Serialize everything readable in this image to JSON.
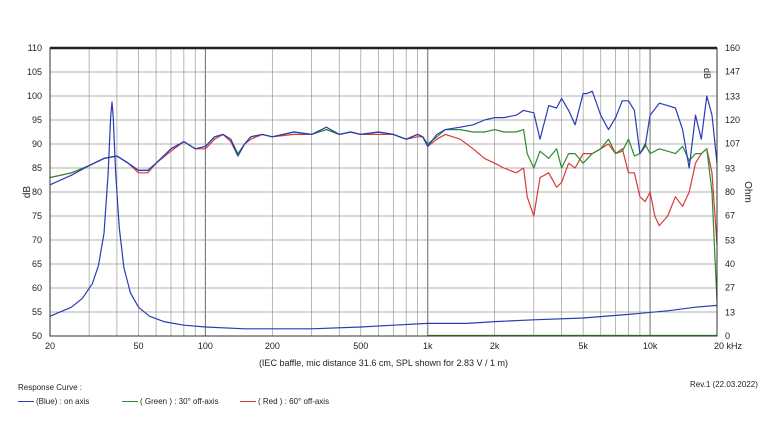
{
  "chart_data": {
    "type": "line",
    "xscale": "log",
    "xlim": [
      20,
      20000
    ],
    "ylim": [
      50,
      110
    ],
    "y2lim": [
      0,
      160
    ],
    "xlabel": "(IEC baffle, mic distance 31.6 cm, SPL shown for 2.83 V / 1 m)",
    "ylabel": "dB",
    "y2label": "Ohm",
    "x_ticks": [
      {
        "value": 20,
        "label": "20"
      },
      {
        "value": 50,
        "label": "50"
      },
      {
        "value": 100,
        "label": "100"
      },
      {
        "value": 200,
        "label": "200"
      },
      {
        "value": 500,
        "label": "500"
      },
      {
        "value": 1000,
        "label": "1k"
      },
      {
        "value": 2000,
        "label": "2k"
      },
      {
        "value": 5000,
        "label": "5k"
      },
      {
        "value": 10000,
        "label": "10k"
      },
      {
        "value": 20000,
        "label": "20 kHz"
      }
    ],
    "y_ticks": [
      110,
      105,
      100,
      95,
      90,
      85,
      80,
      75,
      70,
      65,
      60,
      55,
      50
    ],
    "y2_ticks": [
      160,
      147,
      133,
      120,
      107,
      93,
      80,
      67,
      53,
      40,
      27,
      13,
      0
    ],
    "y2_note": "dB",
    "series": [
      {
        "name": "on axis",
        "color": "#2b3bb8",
        "axis": "left",
        "x": [
          20,
          25,
          30,
          35,
          40,
          45,
          50,
          55,
          60,
          70,
          80,
          90,
          100,
          110,
          120,
          130,
          140,
          150,
          160,
          180,
          200,
          250,
          300,
          350,
          400,
          450,
          500,
          600,
          700,
          800,
          900,
          950,
          1000,
          1100,
          1200,
          1400,
          1600,
          1800,
          2000,
          2200,
          2500,
          2700,
          3000,
          3200,
          3500,
          3800,
          4000,
          4300,
          4600,
          5000,
          5200,
          5500,
          6000,
          6500,
          7000,
          7500,
          8000,
          8500,
          9000,
          9500,
          10000,
          11000,
          12000,
          13000,
          14000,
          15000,
          16000,
          17000,
          18000,
          19000,
          20000
        ],
        "y": [
          81.5,
          83.5,
          85.5,
          87,
          87.5,
          86,
          84.5,
          84.5,
          86,
          89,
          90.5,
          89,
          89.5,
          91.5,
          92,
          91,
          87.5,
          90,
          91.5,
          92,
          91.5,
          92.5,
          92,
          93.5,
          92,
          92.5,
          92,
          92.5,
          92,
          91,
          92,
          91.5,
          89.5,
          92,
          93,
          93.5,
          94,
          95,
          95.5,
          95.5,
          96,
          97,
          96.5,
          91,
          98,
          97.5,
          99.5,
          97,
          94,
          100.5,
          100.5,
          101,
          96,
          93,
          95.5,
          99,
          99,
          97,
          88,
          89.5,
          96,
          98.5,
          98,
          97.5,
          93,
          85,
          96,
          91,
          100,
          96,
          86
        ]
      },
      {
        "name": "30° off-axis",
        "color": "#2e8b2e",
        "axis": "left",
        "x": [
          20,
          25,
          30,
          35,
          40,
          45,
          50,
          55,
          60,
          70,
          80,
          90,
          100,
          110,
          120,
          130,
          140,
          150,
          160,
          180,
          200,
          250,
          300,
          350,
          400,
          450,
          500,
          600,
          700,
          800,
          900,
          950,
          1000,
          1100,
          1200,
          1400,
          1600,
          1800,
          2000,
          2200,
          2500,
          2700,
          2800,
          3000,
          3200,
          3500,
          3800,
          4000,
          4300,
          4600,
          5000,
          5500,
          6000,
          6500,
          7000,
          7500,
          8000,
          8500,
          9000,
          9500,
          10000,
          11000,
          12000,
          13000,
          14000,
          15000,
          16000,
          17000,
          18000,
          19000,
          20000
        ],
        "y": [
          83,
          84,
          85.5,
          87,
          87.5,
          86,
          84.5,
          84.5,
          86,
          89,
          90.5,
          89,
          89.5,
          91.5,
          92,
          91,
          88,
          90,
          91.5,
          92,
          91.5,
          92.5,
          92,
          93,
          92,
          92.5,
          92,
          92.5,
          92,
          91,
          92,
          91.5,
          90,
          91.5,
          93,
          93,
          92.5,
          92.5,
          93,
          92.5,
          92.5,
          93,
          88,
          85,
          88.5,
          87,
          89,
          85,
          88,
          88,
          86,
          88,
          89,
          91,
          88,
          88.5,
          91,
          87.5,
          88,
          90,
          88,
          89,
          88.5,
          88,
          89.5,
          86.5,
          88,
          88,
          89,
          80,
          57
        ]
      },
      {
        "name": "60° off-axis",
        "color": "#d93a3a",
        "axis": "left",
        "x": [
          20,
          25,
          30,
          35,
          40,
          45,
          50,
          55,
          60,
          70,
          80,
          90,
          100,
          110,
          120,
          130,
          140,
          150,
          160,
          180,
          200,
          250,
          300,
          350,
          400,
          450,
          500,
          600,
          700,
          800,
          900,
          950,
          1000,
          1100,
          1200,
          1400,
          1600,
          1800,
          2000,
          2200,
          2500,
          2700,
          2800,
          3000,
          3200,
          3500,
          3800,
          4000,
          4300,
          4600,
          5000,
          5500,
          6000,
          6500,
          7000,
          7500,
          8000,
          8500,
          9000,
          9500,
          10000,
          10500,
          11000,
          12000,
          13000,
          14000,
          15000,
          16000,
          17000,
          18000,
          19000,
          20000
        ],
        "y": [
          83,
          84,
          85.5,
          87,
          87.5,
          86,
          84,
          84,
          86,
          88.5,
          90.5,
          89,
          89,
          91,
          92,
          90.5,
          87.5,
          90,
          91,
          92,
          91.5,
          92,
          92,
          93,
          92,
          92.5,
          92,
          92,
          92,
          91,
          91.5,
          91.5,
          89.5,
          91,
          92,
          91,
          89,
          87,
          86,
          85,
          84,
          85,
          79,
          75,
          83,
          84,
          81,
          82,
          86,
          85,
          88,
          88,
          89,
          90,
          88,
          89,
          84,
          84,
          79,
          78,
          80,
          75,
          73,
          75,
          79,
          77,
          80,
          86,
          88,
          89,
          84,
          69
        ]
      },
      {
        "name": "impedance",
        "color": "#2b3bb8",
        "axis": "right",
        "x": [
          20,
          25,
          28,
          31,
          33,
          35,
          36.5,
          37.5,
          38,
          38.5,
          39.5,
          41,
          43,
          46,
          50,
          56,
          65,
          80,
          100,
          150,
          200,
          300,
          500,
          700,
          1000,
          1500,
          2000,
          3000,
          5000,
          8000,
          12000,
          16000,
          20000
        ],
        "y": [
          11,
          16,
          21,
          29,
          39,
          57,
          90,
          122,
          130,
          122,
          90,
          60,
          38,
          24,
          16,
          11,
          8,
          6,
          5,
          4,
          4,
          4,
          5,
          6,
          7,
          7,
          8,
          9,
          10,
          12,
          14,
          16,
          17
        ]
      },
      {
        "name": "green-baseline",
        "color": "#2e8b2e",
        "axis": "right",
        "x": [
          1000,
          20000
        ],
        "y": [
          0.3,
          0.3
        ]
      }
    ],
    "legend": {
      "title": "Response Curve :",
      "items": [
        {
          "label": "(Blue) : on axis",
          "color": "#2b3bb8"
        },
        {
          "label": "( Green ) : 30° off-axis",
          "color": "#2e8b2e"
        },
        {
          "label": "( Red ) : 60° off-axis",
          "color": "#d93a3a"
        }
      ]
    },
    "revision": "Rev.1 (22.03.2022)"
  }
}
